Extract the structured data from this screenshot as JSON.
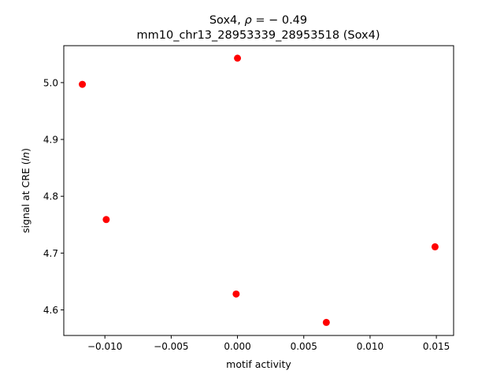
{
  "chart_data": {
    "type": "scatter",
    "title_line1_prefix": "Sox4, ",
    "title_line1_rho": "ρ",
    "title_line1_suffix": " = − 0.49",
    "title_line2": "mm10_chr13_28953339_28953518 (Sox4)",
    "xlabel": "motif activity",
    "ylabel_prefix": "signal at CRE (",
    "ylabel_italic": "ln",
    "ylabel_suffix": ")",
    "xlim": [
      -0.0131,
      0.0163
    ],
    "ylim": [
      4.555,
      5.065
    ],
    "xticks": [
      -0.01,
      -0.005,
      0.0,
      0.005,
      0.01,
      0.015
    ],
    "xtick_labels": [
      "−0.010",
      "−0.005",
      "0.000",
      "0.005",
      "0.010",
      "0.015"
    ],
    "yticks": [
      4.6,
      4.7,
      4.8,
      4.9,
      5.0
    ],
    "ytick_labels": [
      "4.6",
      "4.7",
      "4.8",
      "4.9",
      "5.0"
    ],
    "marker_color": "#ff0000",
    "grid": false,
    "points": [
      {
        "x": -0.0117,
        "y": 4.997
      },
      {
        "x": -0.0099,
        "y": 4.759
      },
      {
        "x": 0.0,
        "y": 5.043
      },
      {
        "x": -0.0001,
        "y": 4.628
      },
      {
        "x": 0.0067,
        "y": 4.578
      },
      {
        "x": 0.0149,
        "y": 4.711
      }
    ]
  }
}
